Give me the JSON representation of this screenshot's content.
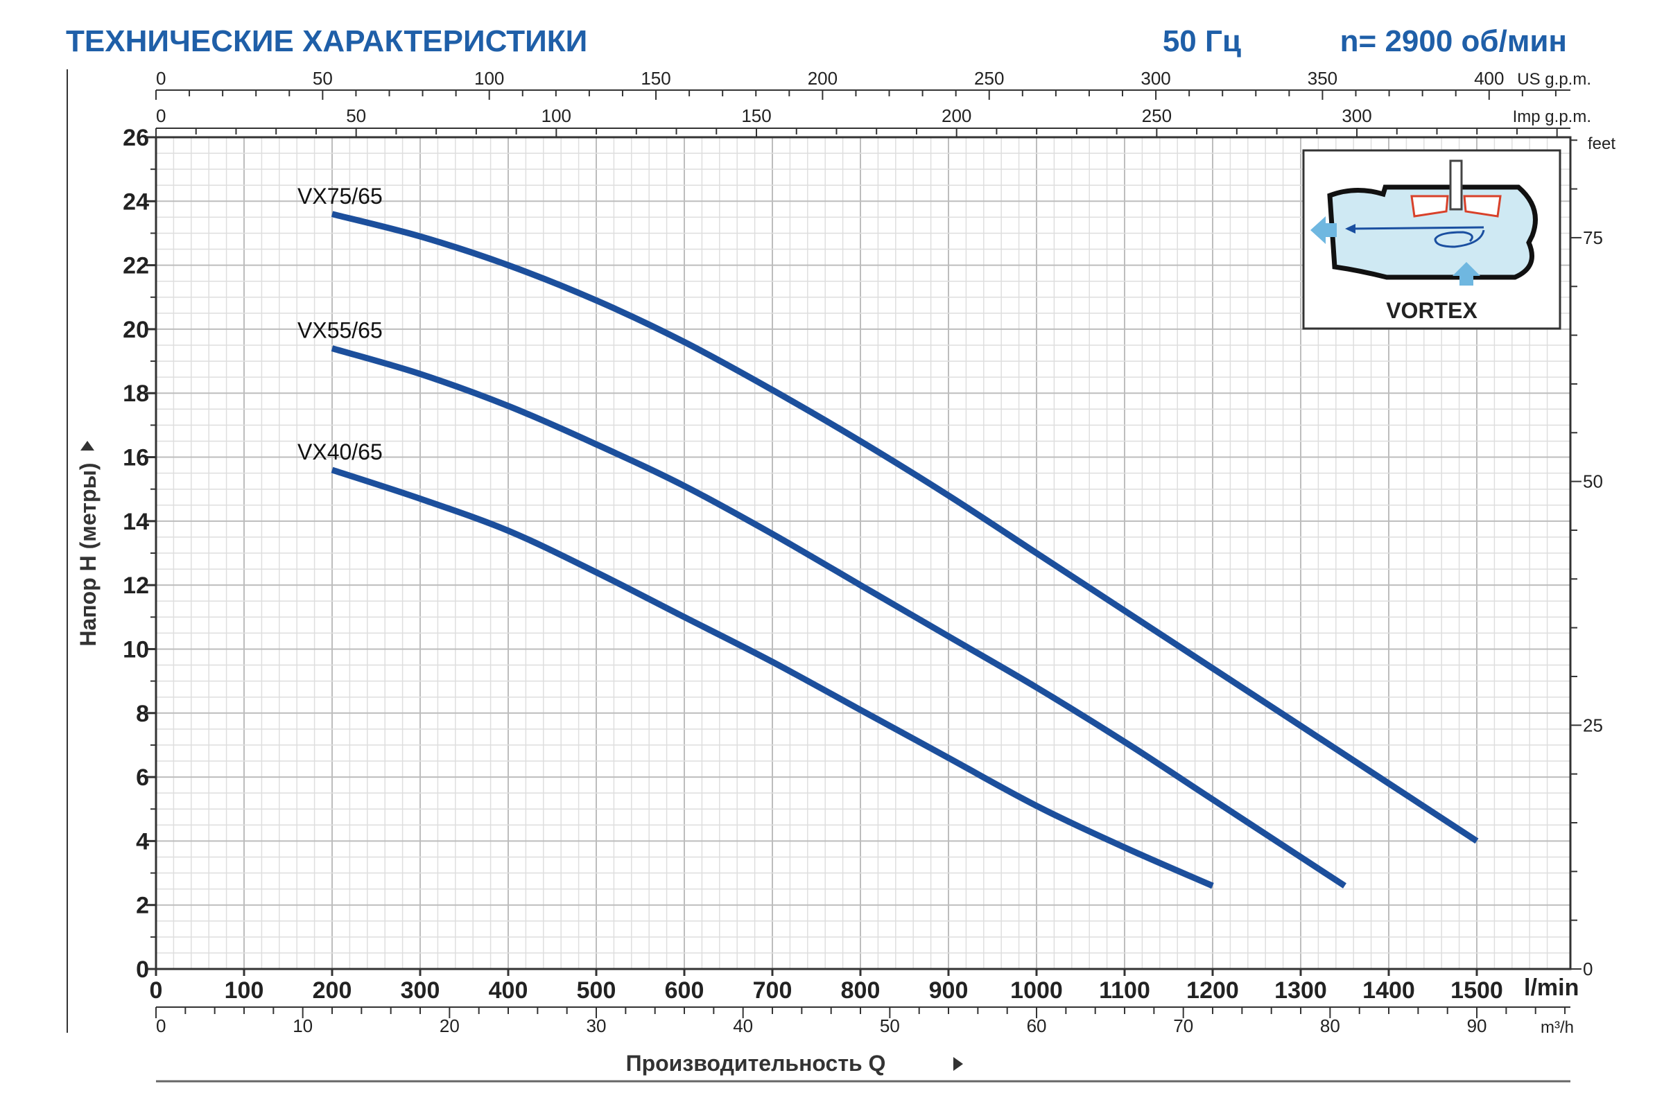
{
  "header": {
    "title": "ТЕХНИЧЕСКИЕ ХАРАКТЕРИСТИКИ",
    "frequency": "50 Гц",
    "speed": "n= 2900 об/мин"
  },
  "colors": {
    "title": "#1f5fa8",
    "curve": "#1c4f9c",
    "grid": "#c8c8c8",
    "axis": "#333333"
  },
  "inset": {
    "label": "VORTEX",
    "icon": "vortex-pump-diagram-icon"
  },
  "chart_data": {
    "type": "line",
    "title": "ТЕХНИЧЕСКИЕ ХАРАКТЕРИСТИКИ",
    "xlabel": "Производительность Q",
    "ylabel": "Напор H (метры)",
    "xlim": [
      0,
      1600
    ],
    "ylim": [
      0,
      26
    ],
    "grid": true,
    "x_unit": "l/min",
    "y_ticks": [
      0,
      2,
      4,
      6,
      8,
      10,
      12,
      14,
      16,
      18,
      20,
      22,
      24,
      26
    ],
    "x_ticks_lmin": [
      0,
      100,
      200,
      300,
      400,
      500,
      600,
      700,
      800,
      900,
      1000,
      1100,
      1200,
      1300,
      1400,
      1500
    ],
    "secondary_axes": {
      "us_gpm": {
        "unit": "US g.p.m.",
        "ticks": [
          0,
          50,
          100,
          150,
          200,
          250,
          300,
          350,
          400
        ]
      },
      "imp_gpm": {
        "unit": "Imp g.p.m.",
        "ticks": [
          0,
          50,
          100,
          150,
          200,
          250,
          300
        ]
      },
      "m3h": {
        "unit": "m³/h",
        "ticks": [
          0,
          10,
          20,
          30,
          40,
          50,
          60,
          70,
          80,
          90
        ]
      },
      "feet": {
        "unit": "feet",
        "ticks": [
          0,
          25,
          50,
          75
        ]
      }
    },
    "series": [
      {
        "name": "VX75/65",
        "x": [
          200,
          300,
          400,
          500,
          600,
          700,
          800,
          900,
          1000,
          1100,
          1200,
          1300,
          1400,
          1500
        ],
        "y": [
          23.6,
          22.9,
          22.0,
          20.9,
          19.6,
          18.1,
          16.5,
          14.8,
          13.0,
          11.2,
          9.4,
          7.6,
          5.8,
          4.0
        ]
      },
      {
        "name": "VX55/65",
        "x": [
          200,
          300,
          400,
          500,
          600,
          700,
          800,
          900,
          1000,
          1100,
          1200,
          1300,
          1350
        ],
        "y": [
          19.4,
          18.6,
          17.6,
          16.4,
          15.1,
          13.6,
          12.0,
          10.4,
          8.8,
          7.1,
          5.3,
          3.5,
          2.6
        ]
      },
      {
        "name": "VX40/65",
        "x": [
          200,
          300,
          400,
          500,
          600,
          700,
          800,
          900,
          1000,
          1100,
          1200
        ],
        "y": [
          15.6,
          14.7,
          13.7,
          12.4,
          11.0,
          9.6,
          8.1,
          6.6,
          5.1,
          3.8,
          2.6
        ]
      }
    ]
  }
}
